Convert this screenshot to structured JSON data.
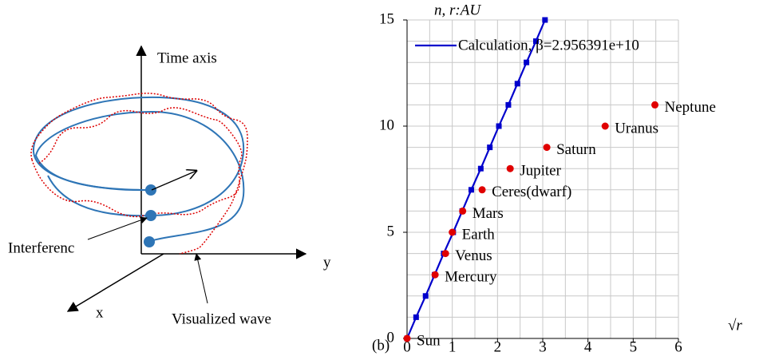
{
  "diagram": {
    "labels": {
      "time_axis": "Time axis",
      "interference": "Interferenc",
      "y": "y",
      "x": "x",
      "wave": "Visualized wave"
    }
  },
  "chart_data": {
    "type": "scatter",
    "panel_label": "(b)",
    "y_label": "n,   r:AU",
    "x_label": "√r",
    "xlim": [
      0,
      6
    ],
    "xticks": [
      0,
      1,
      2,
      3,
      4,
      5,
      6
    ],
    "ylim": [
      0,
      15
    ],
    "yticks": [
      0,
      5,
      10,
      15
    ],
    "grid": true,
    "xgrid": [
      0.5,
      1,
      1.5,
      2,
      2.5,
      3,
      3.5,
      4,
      4.5,
      5,
      5.5,
      6
    ],
    "ygrid": [
      1,
      2,
      3,
      4,
      5,
      6,
      7,
      8,
      9,
      10,
      11,
      12,
      13,
      14,
      15
    ],
    "legend": "top-left",
    "series": [
      {
        "name": "Calculation, β=2.956391e+10",
        "color": "#0000cc",
        "kind": "line",
        "x": [
          0,
          0.2,
          0.41,
          0.61,
          0.81,
          1.02,
          1.22,
          1.42,
          1.63,
          1.83,
          2.03,
          2.24,
          2.44,
          2.64,
          2.85,
          3.05
        ],
        "values": [
          0,
          1,
          2,
          3,
          4,
          5,
          6,
          7,
          8,
          9,
          10,
          11,
          12,
          13,
          14,
          15
        ]
      },
      {
        "color": "#e00000",
        "kind": "points",
        "labels": [
          "Sun",
          "Mercury",
          "Venus",
          "Earth",
          "Mars",
          "Ceres(dwarf)",
          "Jupiter",
          "Saturn",
          "Uranus",
          "Neptune"
        ],
        "x": [
          0,
          0.62,
          0.85,
          1.0,
          1.23,
          1.66,
          2.28,
          3.09,
          4.38,
          5.48
        ],
        "values": [
          0,
          3,
          4,
          5,
          6,
          7,
          8,
          9,
          10,
          11
        ]
      }
    ]
  }
}
